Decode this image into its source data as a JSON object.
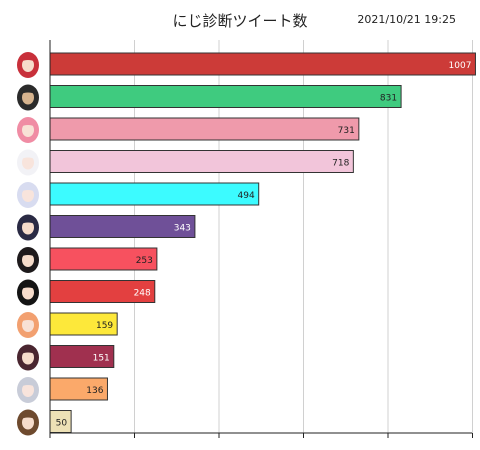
{
  "chart_data": {
    "type": "bar",
    "orientation": "horizontal",
    "title": "にじ診断ツイート数",
    "timestamp": "2021/10/21 19:25",
    "xlim": [
      0,
      1000
    ],
    "grid": true,
    "legend": "none",
    "category_labels": "avatar images",
    "values": [
      1007,
      831,
      731,
      718,
      494,
      343,
      253,
      248,
      159,
      151,
      136,
      50
    ],
    "colors": [
      "#cc3b38",
      "#3fcb7f",
      "#ef9aab",
      "#f2c5da",
      "#3cfbff",
      "#6f5098",
      "#f7515f",
      "#e34040",
      "#fde83a",
      "#a0304f",
      "#fba96a",
      "#ede1b6"
    ],
    "label_colors": [
      "#ffffff",
      "#222222",
      "#222222",
      "#222222",
      "#222222",
      "#ffffff",
      "#222222",
      "#ffffff",
      "#222222",
      "#ffffff",
      "#222222",
      "#222222"
    ],
    "avatars": [
      {
        "hair": "#c8303a",
        "skin": "#f6dccb"
      },
      {
        "hair": "#2b2b2b",
        "skin": "#d7b48f"
      },
      {
        "hair": "#f08ca4",
        "skin": "#f8e1d6"
      },
      {
        "hair": "#f2f2f6",
        "skin": "#f8e4dc"
      },
      {
        "hair": "#d8dcf0",
        "skin": "#f8e4dc"
      },
      {
        "hair": "#2a2a44",
        "skin": "#f6dccb"
      },
      {
        "hair": "#1e1a1c",
        "skin": "#f6dccb"
      },
      {
        "hair": "#141414",
        "skin": "#f6dccb"
      },
      {
        "hair": "#f2a070",
        "skin": "#f8e1d6"
      },
      {
        "hair": "#4a2630",
        "skin": "#f6dccb"
      },
      {
        "hair": "#c8ccd8",
        "skin": "#f8e4dc"
      },
      {
        "hair": "#6e4a2e",
        "skin": "#f6dccb"
      }
    ]
  }
}
